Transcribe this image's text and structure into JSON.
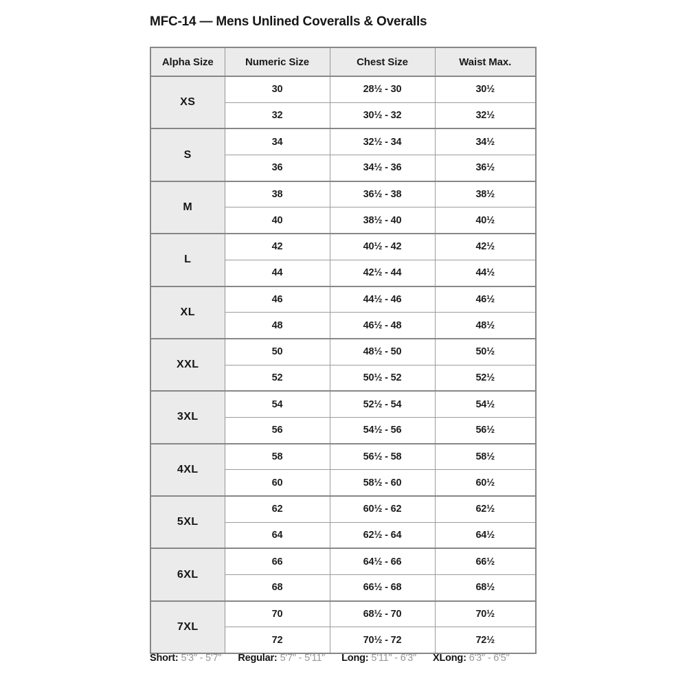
{
  "title": "MFC-14 — Mens Unlined Coveralls & Overalls",
  "table": {
    "headers": [
      "Alpha Size",
      "Numeric Size",
      "Chest Size",
      "Waist Max."
    ],
    "groups": [
      {
        "alpha": "XS",
        "rows": [
          {
            "numeric": "30",
            "chest": "28½ - 30",
            "waist": "30½"
          },
          {
            "numeric": "32",
            "chest": "30½ - 32",
            "waist": "32½"
          }
        ]
      },
      {
        "alpha": "S",
        "rows": [
          {
            "numeric": "34",
            "chest": "32½ - 34",
            "waist": "34½"
          },
          {
            "numeric": "36",
            "chest": "34½ - 36",
            "waist": "36½"
          }
        ]
      },
      {
        "alpha": "M",
        "rows": [
          {
            "numeric": "38",
            "chest": "36½ - 38",
            "waist": "38½"
          },
          {
            "numeric": "40",
            "chest": "38½ - 40",
            "waist": "40½"
          }
        ]
      },
      {
        "alpha": "L",
        "rows": [
          {
            "numeric": "42",
            "chest": "40½ - 42",
            "waist": "42½"
          },
          {
            "numeric": "44",
            "chest": "42½ - 44",
            "waist": "44½"
          }
        ]
      },
      {
        "alpha": "XL",
        "rows": [
          {
            "numeric": "46",
            "chest": "44½ - 46",
            "waist": "46½"
          },
          {
            "numeric": "48",
            "chest": "46½ - 48",
            "waist": "48½"
          }
        ]
      },
      {
        "alpha": "XXL",
        "rows": [
          {
            "numeric": "50",
            "chest": "48½ - 50",
            "waist": "50½"
          },
          {
            "numeric": "52",
            "chest": "50½ - 52",
            "waist": "52½"
          }
        ]
      },
      {
        "alpha": "3XL",
        "rows": [
          {
            "numeric": "54",
            "chest": "52½ - 54",
            "waist": "54½"
          },
          {
            "numeric": "56",
            "chest": "54½ - 56",
            "waist": "56½"
          }
        ]
      },
      {
        "alpha": "4XL",
        "rows": [
          {
            "numeric": "58",
            "chest": "56½ - 58",
            "waist": "58½"
          },
          {
            "numeric": "60",
            "chest": "58½ - 60",
            "waist": "60½"
          }
        ]
      },
      {
        "alpha": "5XL",
        "rows": [
          {
            "numeric": "62",
            "chest": "60½ - 62",
            "waist": "62½"
          },
          {
            "numeric": "64",
            "chest": "62½ - 64",
            "waist": "64½"
          }
        ]
      },
      {
        "alpha": "6XL",
        "rows": [
          {
            "numeric": "66",
            "chest": "64½ - 66",
            "waist": "66½"
          },
          {
            "numeric": "68",
            "chest": "66½ - 68",
            "waist": "68½"
          }
        ]
      },
      {
        "alpha": "7XL",
        "rows": [
          {
            "numeric": "70",
            "chest": "68½ - 70",
            "waist": "70½"
          },
          {
            "numeric": "72",
            "chest": "70½ - 72",
            "waist": "72½"
          }
        ]
      }
    ]
  },
  "footer": {
    "items": [
      {
        "label": "Short:",
        "range": "5'3\" - 5'7\""
      },
      {
        "label": "Regular:",
        "range": "5'7\" - 5'11\""
      },
      {
        "label": "Long:",
        "range": "5'11\" - 6'3\""
      },
      {
        "label": "XLong:",
        "range": "6'3\" - 6'5\""
      }
    ]
  },
  "colors": {
    "header_bg": "#ebebeb",
    "border": "#868686",
    "text": "#1d1d1d",
    "muted_text": "#979797"
  }
}
